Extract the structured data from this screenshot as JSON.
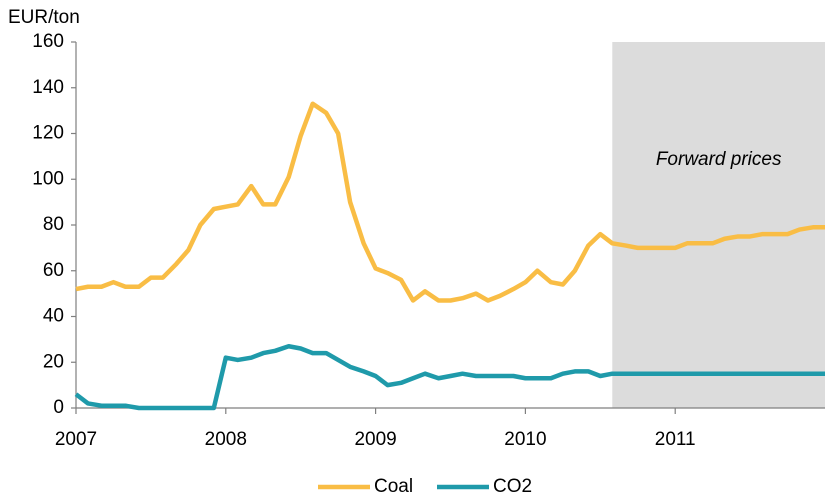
{
  "chart_data": {
    "type": "line",
    "y_label": "EUR/ton",
    "x": [
      2007,
      2007.08,
      2007.17,
      2007.25,
      2007.33,
      2007.42,
      2007.5,
      2007.58,
      2007.67,
      2007.75,
      2007.83,
      2007.92,
      2008,
      2008.08,
      2008.17,
      2008.25,
      2008.33,
      2008.42,
      2008.5,
      2008.58,
      2008.67,
      2008.75,
      2008.83,
      2008.92,
      2009,
      2009.08,
      2009.17,
      2009.25,
      2009.33,
      2009.42,
      2009.5,
      2009.58,
      2009.67,
      2009.75,
      2009.83,
      2009.92,
      2010,
      2010.08,
      2010.17,
      2010.25,
      2010.33,
      2010.42,
      2010.5,
      2010.58,
      2010.67,
      2010.75,
      2010.83,
      2010.92,
      2011,
      2011.08,
      2011.17,
      2011.25,
      2011.33,
      2011.42,
      2011.5,
      2011.58,
      2011.67,
      2011.75,
      2011.83,
      2011.92,
      2012
    ],
    "series": [
      {
        "name": "Coal",
        "color": "#f9bd45",
        "values": [
          52,
          53,
          53,
          55,
          53,
          53,
          57,
          57,
          63,
          69,
          80,
          87,
          88,
          89,
          97,
          89,
          89,
          101,
          119,
          133,
          129,
          120,
          90,
          72,
          61,
          59,
          56,
          47,
          51,
          47,
          47,
          48,
          50,
          47,
          49,
          52,
          55,
          60,
          55,
          54,
          60,
          71,
          76,
          72,
          71,
          70,
          70,
          70,
          70,
          72,
          72,
          72,
          74,
          75,
          75,
          76,
          76,
          76,
          78,
          79,
          79
        ]
      },
      {
        "name": "CO2",
        "color": "#1f9aaa",
        "values": [
          6,
          2,
          1,
          1,
          1,
          0,
          0,
          0,
          0,
          0,
          0,
          0,
          22,
          21,
          22,
          24,
          25,
          27,
          26,
          24,
          24,
          21,
          18,
          16,
          14,
          10,
          11,
          13,
          15,
          13,
          14,
          15,
          14,
          14,
          14,
          14,
          13,
          13,
          13,
          15,
          16,
          16,
          14,
          15,
          15,
          15,
          15,
          15,
          15,
          15,
          15,
          15,
          15,
          15,
          15,
          15,
          15,
          15,
          15,
          15,
          15
        ]
      }
    ],
    "xlim": [
      2007,
      2012
    ],
    "xticks": [
      2007,
      2008,
      2009,
      2010,
      2011
    ],
    "ylim": [
      0,
      160
    ],
    "yticks": [
      0,
      20,
      40,
      60,
      80,
      100,
      120,
      140,
      160
    ],
    "grid": false,
    "legend": "bottom",
    "shaded_region": {
      "from": 2010.58,
      "to": 2012,
      "label": "Forward prices",
      "color": "#dcdcdc"
    }
  }
}
